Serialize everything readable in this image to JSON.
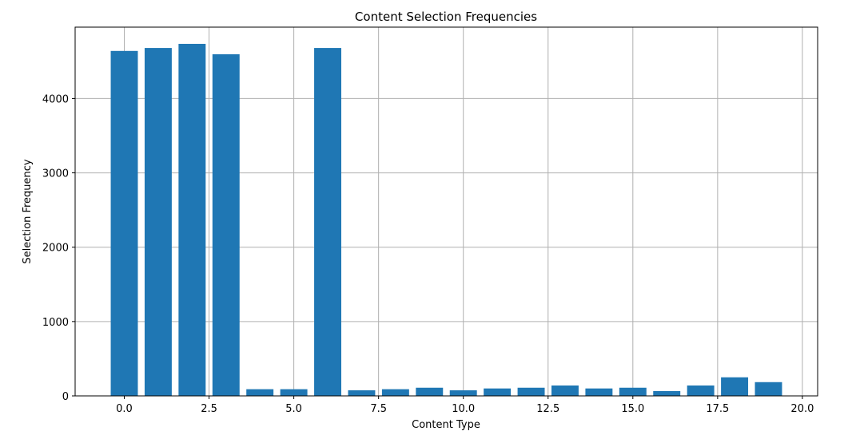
{
  "chart_data": {
    "type": "bar",
    "title": "Content Selection Frequencies",
    "xlabel": "Content Type",
    "ylabel": "Selection Frequency",
    "x": [
      0,
      1,
      2,
      3,
      4,
      5,
      6,
      7,
      8,
      9,
      10,
      11,
      12,
      13,
      14,
      15,
      16,
      17,
      18,
      19
    ],
    "values": [
      4640,
      4680,
      4735,
      4595,
      90,
      90,
      4680,
      75,
      90,
      110,
      75,
      100,
      110,
      140,
      100,
      110,
      65,
      140,
      250,
      185
    ],
    "bar_width": 0.8,
    "xlim": [
      -1.45,
      20.45
    ],
    "ylim": [
      0,
      4960
    ],
    "xticks": [
      0.0,
      2.5,
      5.0,
      7.5,
      10.0,
      12.5,
      15.0,
      17.5,
      20.0
    ],
    "xtick_labels": [
      "0.0",
      "2.5",
      "5.0",
      "7.5",
      "10.0",
      "12.5",
      "15.0",
      "17.5",
      "20.0"
    ],
    "yticks": [
      0,
      1000,
      2000,
      3000,
      4000
    ],
    "ytick_labels": [
      "0",
      "1000",
      "2000",
      "3000",
      "4000"
    ],
    "grid": true,
    "colors": {
      "bar": "#1f77b4",
      "grid": "#b0b0b0",
      "axis": "#000000"
    }
  }
}
